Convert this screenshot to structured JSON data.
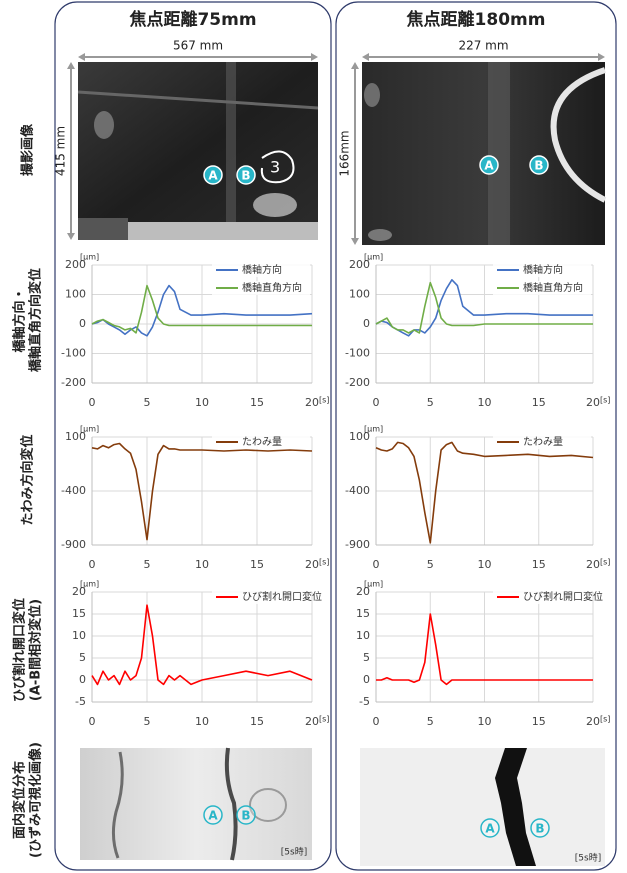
{
  "row_labels": [
    [
      "撮影画像"
    ],
    [
      "橋軸方向・",
      "橋軸直角方向変位"
    ],
    [
      "たわみ方向変位"
    ],
    [
      "ひび割れ開口変位",
      "(A-B間相対変位)"
    ],
    [
      "面内変位分布",
      "(ひずみ可視化画像)"
    ]
  ],
  "columns": [
    {
      "title": "焦点距離75mm",
      "width_label": "567 mm",
      "height_label": "415 mm",
      "markers": [
        "A",
        "B"
      ],
      "time_label": "[5s時]"
    },
    {
      "title": "焦点距離180mm",
      "width_label": "227 mm",
      "height_label": "166mm",
      "markers": [
        "A",
        "B"
      ],
      "time_label": "[5s時]"
    }
  ],
  "chart_data": [
    {
      "type": "line",
      "x": [
        0,
        0.5,
        1,
        1.5,
        2,
        2.5,
        3,
        3.5,
        4,
        4.5,
        5,
        5.5,
        6,
        6.5,
        7,
        7.5,
        8,
        9,
        10,
        12,
        14,
        16,
        18,
        20
      ],
      "xlim": [
        0,
        20
      ],
      "xticks": [
        0,
        5,
        10,
        15,
        20
      ],
      "ylim": [
        -200,
        200
      ],
      "yticks": [
        -200,
        -100,
        0,
        100,
        200
      ],
      "y_unit": "[μm]",
      "x_unit": "[s]",
      "grid": true,
      "legend": "upper right",
      "series": [
        {
          "name": "橋軸方向",
          "color": "#4472c4",
          "values": [
            0,
            5,
            15,
            0,
            -10,
            -20,
            -35,
            -20,
            -10,
            -30,
            -40,
            -10,
            40,
            100,
            130,
            110,
            50,
            30,
            30,
            35,
            30,
            30,
            30,
            35
          ]
        },
        {
          "name": "橋軸直角方向",
          "color": "#70ad47",
          "values": [
            0,
            10,
            15,
            5,
            -5,
            -10,
            -20,
            -15,
            -30,
            40,
            130,
            80,
            20,
            0,
            -5,
            -5,
            -5,
            -5,
            -5,
            -5,
            -5,
            -5,
            -5,
            -5
          ]
        }
      ]
    },
    {
      "type": "line",
      "x": [
        0,
        0.5,
        1,
        1.5,
        2,
        2.5,
        3,
        3.5,
        4,
        4.5,
        5,
        5.5,
        6,
        6.5,
        7,
        7.5,
        8,
        9,
        10,
        12,
        14,
        16,
        18,
        20
      ],
      "xlim": [
        0,
        20
      ],
      "xticks": [
        0,
        5,
        10,
        15,
        20
      ],
      "ylim": [
        -200,
        200
      ],
      "yticks": [
        -200,
        -100,
        0,
        100,
        200
      ],
      "y_unit": "[μm]",
      "x_unit": "[s]",
      "grid": true,
      "legend": "upper right",
      "series": [
        {
          "name": "橋軸方向",
          "color": "#4472c4",
          "values": [
            0,
            10,
            5,
            -10,
            -20,
            -30,
            -40,
            -20,
            -20,
            -30,
            -10,
            20,
            80,
            120,
            150,
            130,
            60,
            30,
            30,
            35,
            35,
            30,
            30,
            30
          ]
        },
        {
          "name": "橋軸直角方向",
          "color": "#70ad47",
          "values": [
            0,
            10,
            20,
            -10,
            -20,
            -20,
            -30,
            -20,
            -30,
            60,
            140,
            90,
            20,
            0,
            -5,
            -5,
            -5,
            -5,
            0,
            0,
            0,
            0,
            0,
            0
          ]
        }
      ]
    },
    {
      "type": "line",
      "x": [
        0,
        0.5,
        1,
        1.5,
        2,
        2.5,
        3,
        3.5,
        4,
        4.5,
        5,
        5.5,
        6,
        6.5,
        7,
        7.5,
        8,
        9,
        10,
        12,
        14,
        16,
        18,
        20
      ],
      "xlim": [
        0,
        20
      ],
      "xticks": [
        0,
        5,
        10,
        15,
        20
      ],
      "ylim": [
        -900,
        100
      ],
      "yticks": [
        -900,
        -400,
        100
      ],
      "y_unit": "[μm]",
      "x_unit": "[s]",
      "grid": true,
      "legend": "upper right",
      "series": [
        {
          "name": "たわみ量",
          "color": "#843c0c",
          "values": [
            0,
            -10,
            20,
            0,
            30,
            40,
            -10,
            -50,
            -200,
            -500,
            -850,
            -400,
            -60,
            20,
            -10,
            -10,
            -20,
            -20,
            -20,
            -30,
            -20,
            -30,
            -20,
            -30
          ]
        }
      ]
    },
    {
      "type": "line",
      "x": [
        0,
        0.5,
        1,
        1.5,
        2,
        2.5,
        3,
        3.5,
        4,
        4.5,
        5,
        5.5,
        6,
        6.5,
        7,
        7.5,
        8,
        9,
        10,
        12,
        14,
        16,
        18,
        20
      ],
      "xlim": [
        0,
        20
      ],
      "xticks": [
        0,
        5,
        10,
        15,
        20
      ],
      "ylim": [
        -900,
        100
      ],
      "yticks": [
        -900,
        -400,
        100
      ],
      "y_unit": "[μm]",
      "x_unit": "[s]",
      "grid": true,
      "legend": "upper right",
      "series": [
        {
          "name": "たわみ量",
          "color": "#843c0c",
          "values": [
            0,
            -20,
            -30,
            -10,
            50,
            40,
            0,
            -80,
            -300,
            -600,
            -880,
            -400,
            -20,
            30,
            50,
            -30,
            -50,
            -60,
            -80,
            -70,
            -60,
            -80,
            -70,
            -90
          ]
        }
      ]
    },
    {
      "type": "line",
      "x": [
        0,
        0.5,
        1,
        1.5,
        2,
        2.5,
        3,
        3.5,
        4,
        4.5,
        5,
        5.5,
        6,
        6.5,
        7,
        7.5,
        8,
        9,
        10,
        12,
        14,
        16,
        18,
        20
      ],
      "xlim": [
        0,
        20
      ],
      "xticks": [
        0,
        5,
        10,
        15,
        20
      ],
      "ylim": [
        -5,
        20
      ],
      "yticks": [
        -5,
        0,
        5,
        10,
        15,
        20
      ],
      "y_unit": "[μm]",
      "x_unit": "[s]",
      "grid": true,
      "legend": "upper right",
      "series": [
        {
          "name": "ひび割れ開口変位",
          "color": "#ff0000",
          "values": [
            1,
            -1,
            2,
            0,
            1,
            -1,
            2,
            0,
            1,
            5,
            17,
            10,
            0,
            -1,
            1,
            0,
            1,
            -1,
            0,
            1,
            2,
            1,
            2,
            0
          ]
        }
      ]
    },
    {
      "type": "line",
      "x": [
        0,
        0.5,
        1,
        1.5,
        2,
        2.5,
        3,
        3.5,
        4,
        4.5,
        5,
        5.5,
        6,
        6.5,
        7,
        7.5,
        8,
        9,
        10,
        12,
        14,
        16,
        18,
        20
      ],
      "xlim": [
        0,
        20
      ],
      "xticks": [
        0,
        5,
        10,
        15,
        20
      ],
      "ylim": [
        -5,
        20
      ],
      "yticks": [
        -5,
        0,
        5,
        10,
        15,
        20
      ],
      "y_unit": "[μm]",
      "x_unit": "[s]",
      "grid": true,
      "legend": "upper right",
      "series": [
        {
          "name": "ひび割れ開口変位",
          "color": "#ff0000",
          "values": [
            0,
            0,
            0.5,
            0,
            0,
            0,
            0,
            -0.5,
            0,
            4,
            15,
            8,
            0,
            -1,
            0,
            0,
            0,
            0,
            0,
            0,
            0,
            0,
            0,
            0
          ]
        }
      ]
    }
  ]
}
